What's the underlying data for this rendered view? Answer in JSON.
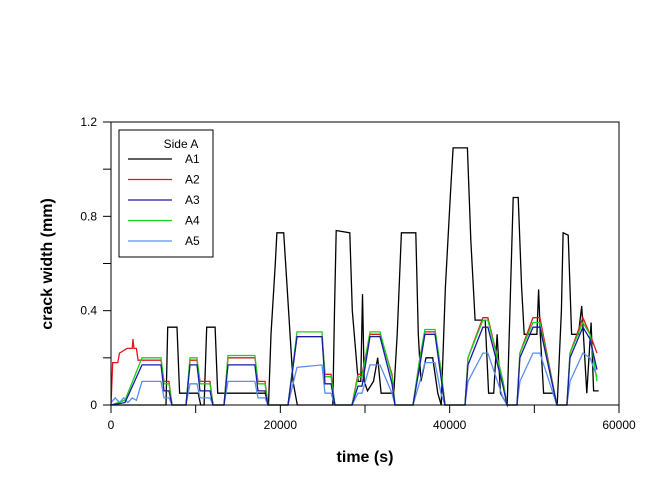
{
  "chart_data": {
    "type": "line",
    "title": "",
    "xlabel": "time (s)",
    "ylabel": "crack width (mm)",
    "xlim": [
      0,
      60000
    ],
    "ylim": [
      0,
      1.2
    ],
    "x_ticks": [
      0,
      20000,
      40000,
      60000
    ],
    "x_minor_step": 10000,
    "y_ticks": [
      0,
      0.4,
      0.8,
      1.2
    ],
    "y_minor_step": 0.2,
    "grid": false,
    "legend": {
      "title": "Side A",
      "placement": "top-left"
    },
    "series": [
      {
        "name": "A1",
        "color": "#000000",
        "points": [
          [
            0,
            0
          ],
          [
            6500,
            0
          ],
          [
            6700,
            0.33
          ],
          [
            7800,
            0.33
          ],
          [
            8100,
            0.05
          ],
          [
            10300,
            0.05
          ],
          [
            10600,
            0
          ],
          [
            11000,
            0
          ],
          [
            11300,
            0.33
          ],
          [
            12300,
            0.33
          ],
          [
            12600,
            0.05
          ],
          [
            18200,
            0.05
          ],
          [
            18600,
            0
          ],
          [
            18900,
            0.3
          ],
          [
            19400,
            0.6
          ],
          [
            19600,
            0.73
          ],
          [
            20400,
            0.73
          ],
          [
            20800,
            0.5
          ],
          [
            21500,
            0.1
          ],
          [
            22000,
            0
          ],
          [
            26200,
            0
          ],
          [
            26400,
            0.4
          ],
          [
            26600,
            0.74
          ],
          [
            28200,
            0.73
          ],
          [
            28500,
            0.4
          ],
          [
            29200,
            0.1
          ],
          [
            29500,
            0.1
          ],
          [
            29700,
            0.47
          ],
          [
            29900,
            0.1
          ],
          [
            30300,
            0.06
          ],
          [
            31000,
            0.1
          ],
          [
            31500,
            0.2
          ],
          [
            31900,
            0.05
          ],
          [
            33400,
            0.05
          ],
          [
            33800,
            0.3
          ],
          [
            34300,
            0.73
          ],
          [
            36000,
            0.73
          ],
          [
            36300,
            0.3
          ],
          [
            36600,
            0.1
          ],
          [
            37200,
            0.2
          ],
          [
            38000,
            0.2
          ],
          [
            38600,
            0.05
          ],
          [
            39000,
            0
          ],
          [
            39500,
            0.5
          ],
          [
            40100,
            0.9
          ],
          [
            40400,
            1.09
          ],
          [
            42100,
            1.09
          ],
          [
            42500,
            0.7
          ],
          [
            43000,
            0.36
          ],
          [
            44200,
            0.36
          ],
          [
            44600,
            0.05
          ],
          [
            45200,
            0.05
          ],
          [
            45600,
            0.3
          ],
          [
            46000,
            0.05
          ],
          [
            46800,
            0
          ],
          [
            47200,
            0.5
          ],
          [
            47500,
            0.88
          ],
          [
            48100,
            0.88
          ],
          [
            48500,
            0.5
          ],
          [
            48800,
            0.3
          ],
          [
            50300,
            0.3
          ],
          [
            50500,
            0.49
          ],
          [
            50700,
            0.3
          ],
          [
            51100,
            0.05
          ],
          [
            52200,
            0.05
          ],
          [
            52700,
            0
          ],
          [
            53200,
            0.4
          ],
          [
            53400,
            0.73
          ],
          [
            54000,
            0.72
          ],
          [
            54400,
            0.3
          ],
          [
            55200,
            0.3
          ],
          [
            55600,
            0.42
          ],
          [
            55800,
            0.3
          ],
          [
            56200,
            0.05
          ],
          [
            56700,
            0.35
          ],
          [
            57000,
            0.06
          ],
          [
            57600,
            0.06
          ]
        ]
      },
      {
        "name": "A2",
        "color": "#e8141b",
        "points": [
          [
            0,
            0
          ],
          [
            200,
            0.18
          ],
          [
            800,
            0.18
          ],
          [
            1000,
            0.22
          ],
          [
            1900,
            0.24
          ],
          [
            2500,
            0.24
          ],
          [
            2600,
            0.28
          ],
          [
            2700,
            0.24
          ],
          [
            3000,
            0.24
          ],
          [
            3200,
            0.19
          ],
          [
            5900,
            0.19
          ],
          [
            6260,
            0.1
          ],
          [
            6850,
            0.1
          ],
          [
            7200,
            0
          ],
          [
            8860,
            0
          ],
          [
            9330,
            0.19
          ],
          [
            10160,
            0.19
          ],
          [
            10510,
            0.1
          ],
          [
            11690,
            0.1
          ],
          [
            12050,
            0
          ],
          [
            13350,
            0
          ],
          [
            13820,
            0.2
          ],
          [
            17000,
            0.2
          ],
          [
            17360,
            0.1
          ],
          [
            18190,
            0.1
          ],
          [
            18540,
            0
          ],
          [
            20900,
            0
          ],
          [
            21970,
            0.29
          ],
          [
            24920,
            0.29
          ],
          [
            25270,
            0.13
          ],
          [
            25980,
            0.13
          ],
          [
            26450,
            0
          ],
          [
            28460,
            0
          ],
          [
            29170,
            0.13
          ],
          [
            29640,
            0.13
          ],
          [
            30590,
            0.3
          ],
          [
            31770,
            0.3
          ],
          [
            33190,
            0.13
          ],
          [
            33540,
            0
          ],
          [
            35670,
            0
          ],
          [
            36490,
            0.2
          ],
          [
            37080,
            0.31
          ],
          [
            38270,
            0.31
          ],
          [
            38970,
            0.15
          ],
          [
            39450,
            0
          ],
          [
            41810,
            0
          ],
          [
            42160,
            0.2
          ],
          [
            43930,
            0.37
          ],
          [
            44520,
            0.37
          ],
          [
            46300,
            0.1
          ],
          [
            46770,
            0
          ],
          [
            47950,
            0
          ],
          [
            48300,
            0.22
          ],
          [
            49840,
            0.37
          ],
          [
            50660,
            0.37
          ],
          [
            52670,
            0
          ],
          [
            53850,
            0
          ],
          [
            54210,
            0.22
          ],
          [
            55740,
            0.37
          ],
          [
            56570,
            0.3
          ],
          [
            57400,
            0.22
          ]
        ]
      },
      {
        "name": "A3",
        "color": "#1a1aa8",
        "points": [
          [
            0,
            0
          ],
          [
            1650,
            0.01
          ],
          [
            3660,
            0.17
          ],
          [
            5900,
            0.17
          ],
          [
            6260,
            0.06
          ],
          [
            6850,
            0.06
          ],
          [
            7200,
            0
          ],
          [
            8860,
            0
          ],
          [
            9330,
            0.17
          ],
          [
            10160,
            0.17
          ],
          [
            10510,
            0.06
          ],
          [
            11690,
            0.06
          ],
          [
            12050,
            0
          ],
          [
            13350,
            0
          ],
          [
            13820,
            0.17
          ],
          [
            17000,
            0.17
          ],
          [
            17360,
            0.06
          ],
          [
            18190,
            0.06
          ],
          [
            18540,
            0
          ],
          [
            20900,
            0
          ],
          [
            21970,
            0.29
          ],
          [
            24920,
            0.29
          ],
          [
            25270,
            0.09
          ],
          [
            25980,
            0.09
          ],
          [
            26450,
            0
          ],
          [
            28460,
            0
          ],
          [
            29170,
            0.08
          ],
          [
            29640,
            0.08
          ],
          [
            30590,
            0.29
          ],
          [
            31770,
            0.29
          ],
          [
            33190,
            0.09
          ],
          [
            33540,
            0
          ],
          [
            35670,
            0
          ],
          [
            36490,
            0.17
          ],
          [
            37080,
            0.3
          ],
          [
            38270,
            0.3
          ],
          [
            38970,
            0.12
          ],
          [
            39450,
            0
          ],
          [
            41810,
            0
          ],
          [
            42160,
            0.17
          ],
          [
            43930,
            0.33
          ],
          [
            44520,
            0.33
          ],
          [
            46300,
            0.08
          ],
          [
            46770,
            0
          ],
          [
            47950,
            0
          ],
          [
            48300,
            0.2
          ],
          [
            49840,
            0.33
          ],
          [
            50660,
            0.33
          ],
          [
            52670,
            0
          ],
          [
            53850,
            0
          ],
          [
            54210,
            0.2
          ],
          [
            55740,
            0.33
          ],
          [
            56570,
            0.28
          ],
          [
            57400,
            0.15
          ]
        ]
      },
      {
        "name": "A4",
        "color": "#19d219",
        "points": [
          [
            0,
            0
          ],
          [
            1650,
            0.02
          ],
          [
            3660,
            0.2
          ],
          [
            5900,
            0.2
          ],
          [
            6260,
            0.09
          ],
          [
            6850,
            0.09
          ],
          [
            7200,
            0
          ],
          [
            8860,
            0
          ],
          [
            9330,
            0.2
          ],
          [
            10160,
            0.2
          ],
          [
            10510,
            0.09
          ],
          [
            11690,
            0.09
          ],
          [
            12050,
            0
          ],
          [
            13350,
            0
          ],
          [
            13820,
            0.21
          ],
          [
            17000,
            0.21
          ],
          [
            17360,
            0.09
          ],
          [
            18190,
            0.09
          ],
          [
            18540,
            0
          ],
          [
            20900,
            0
          ],
          [
            21970,
            0.31
          ],
          [
            24920,
            0.31
          ],
          [
            25270,
            0.12
          ],
          [
            25980,
            0.12
          ],
          [
            26450,
            0
          ],
          [
            28460,
            0
          ],
          [
            29170,
            0.12
          ],
          [
            29640,
            0.12
          ],
          [
            30590,
            0.31
          ],
          [
            31770,
            0.31
          ],
          [
            33190,
            0.12
          ],
          [
            33540,
            0
          ],
          [
            35670,
            0
          ],
          [
            36490,
            0.2
          ],
          [
            37080,
            0.32
          ],
          [
            38270,
            0.32
          ],
          [
            38970,
            0.15
          ],
          [
            39450,
            0
          ],
          [
            41810,
            0
          ],
          [
            42160,
            0.2
          ],
          [
            43930,
            0.36
          ],
          [
            44520,
            0.36
          ],
          [
            46300,
            0.1
          ],
          [
            46770,
            0
          ],
          [
            47950,
            0
          ],
          [
            48300,
            0.22
          ],
          [
            49840,
            0.35
          ],
          [
            50660,
            0.35
          ],
          [
            52670,
            0
          ],
          [
            53850,
            0
          ],
          [
            54210,
            0.22
          ],
          [
            55740,
            0.35
          ],
          [
            56570,
            0.3
          ],
          [
            57400,
            0.1
          ]
        ]
      },
      {
        "name": "A5",
        "color": "#5a8ef0",
        "points": [
          [
            0,
            0.01
          ],
          [
            500,
            0.03
          ],
          [
            1000,
            0.01
          ],
          [
            1500,
            0.03
          ],
          [
            2000,
            0.01
          ],
          [
            2500,
            0.03
          ],
          [
            3000,
            0.02
          ],
          [
            3660,
            0.1
          ],
          [
            5900,
            0.1
          ],
          [
            6260,
            0.03
          ],
          [
            6850,
            0.03
          ],
          [
            7200,
            0
          ],
          [
            8860,
            0
          ],
          [
            9330,
            0.09
          ],
          [
            10160,
            0.09
          ],
          [
            10510,
            0.03
          ],
          [
            11690,
            0.03
          ],
          [
            12050,
            0
          ],
          [
            13350,
            0
          ],
          [
            13820,
            0.1
          ],
          [
            17000,
            0.1
          ],
          [
            17360,
            0.03
          ],
          [
            18190,
            0.03
          ],
          [
            18540,
            0
          ],
          [
            20900,
            0
          ],
          [
            21970,
            0.16
          ],
          [
            24920,
            0.17
          ],
          [
            25270,
            0.05
          ],
          [
            25980,
            0.05
          ],
          [
            26450,
            0
          ],
          [
            28460,
            0
          ],
          [
            29170,
            0.05
          ],
          [
            29640,
            0.05
          ],
          [
            30590,
            0.17
          ],
          [
            31770,
            0.17
          ],
          [
            33190,
            0.05
          ],
          [
            33540,
            0
          ],
          [
            35670,
            0
          ],
          [
            36490,
            0.1
          ],
          [
            37080,
            0.18
          ],
          [
            38270,
            0.18
          ],
          [
            38970,
            0.05
          ],
          [
            39450,
            0
          ],
          [
            41810,
            0
          ],
          [
            42160,
            0.1
          ],
          [
            43930,
            0.22
          ],
          [
            44520,
            0.22
          ],
          [
            46300,
            0.03
          ],
          [
            46770,
            0
          ],
          [
            47950,
            0
          ],
          [
            48300,
            0.1
          ],
          [
            49840,
            0.22
          ],
          [
            50660,
            0.22
          ],
          [
            52670,
            0
          ],
          [
            53850,
            0
          ],
          [
            54210,
            0.1
          ],
          [
            55740,
            0.22
          ],
          [
            56570,
            0.2
          ],
          [
            57400,
            0.12
          ]
        ]
      }
    ]
  }
}
